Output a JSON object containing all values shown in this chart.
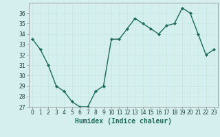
{
  "x": [
    0,
    1,
    2,
    3,
    4,
    5,
    6,
    7,
    8,
    9,
    10,
    11,
    12,
    13,
    14,
    15,
    16,
    17,
    18,
    19,
    20,
    21,
    22,
    23
  ],
  "y": [
    33.5,
    32.5,
    31.0,
    29.0,
    28.5,
    27.5,
    27.0,
    27.0,
    28.5,
    29.0,
    33.5,
    33.5,
    34.5,
    35.5,
    35.0,
    34.5,
    34.0,
    34.8,
    35.0,
    36.5,
    36.0,
    34.0,
    32.0,
    32.5
  ],
  "line_color": "#1a6b5a",
  "marker": "D",
  "marker_size": 2.0,
  "bg_color": "#d5efef",
  "grid_color": "#c8e8e0",
  "xlabel": "Humidex (Indice chaleur)",
  "ylim": [
    27,
    37
  ],
  "xlim": [
    -0.5,
    23.5
  ],
  "yticks": [
    27,
    28,
    29,
    30,
    31,
    32,
    33,
    34,
    35,
    36
  ],
  "xticks": [
    0,
    1,
    2,
    3,
    4,
    5,
    6,
    7,
    8,
    9,
    10,
    11,
    12,
    13,
    14,
    15,
    16,
    17,
    18,
    19,
    20,
    21,
    22,
    23
  ],
  "tick_fontsize": 5.5,
  "xlabel_fontsize": 7,
  "line_width": 1.0
}
